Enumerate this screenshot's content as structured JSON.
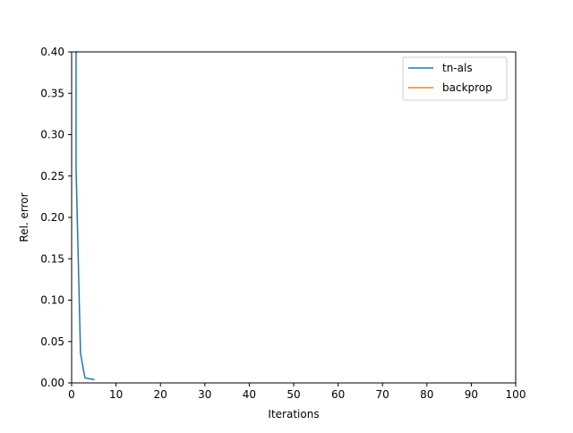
{
  "chart_data": {
    "type": "line",
    "title": "",
    "xlabel": "Iterations",
    "ylabel": "Rel. error",
    "xlim": [
      0,
      100
    ],
    "ylim": [
      0.0,
      0.4
    ],
    "xticks": [
      0,
      10,
      20,
      30,
      40,
      50,
      60,
      70,
      80,
      90,
      100
    ],
    "xtick_labels": [
      "0",
      "10",
      "20",
      "30",
      "40",
      "50",
      "60",
      "70",
      "80",
      "90",
      "100"
    ],
    "yticks": [
      0.0,
      0.05,
      0.1,
      0.15,
      0.2,
      0.25,
      0.3,
      0.35,
      0.4
    ],
    "ytick_labels": [
      "0.00",
      "0.05",
      "0.10",
      "0.15",
      "0.20",
      "0.25",
      "0.30",
      "0.35",
      "0.40"
    ],
    "grid": false,
    "legend_position": "top-right",
    "series": [
      {
        "name": "tn-als",
        "color": "#1f77b4",
        "x": [
          1,
          2,
          3,
          4,
          5
        ],
        "y": [
          0.26,
          0.036,
          0.006,
          0.005,
          0.004
        ],
        "clip_start": {
          "x": 1,
          "y": 0.4
        }
      },
      {
        "name": "backprop",
        "color": "#ff7f0e",
        "x": [],
        "y": []
      }
    ]
  }
}
